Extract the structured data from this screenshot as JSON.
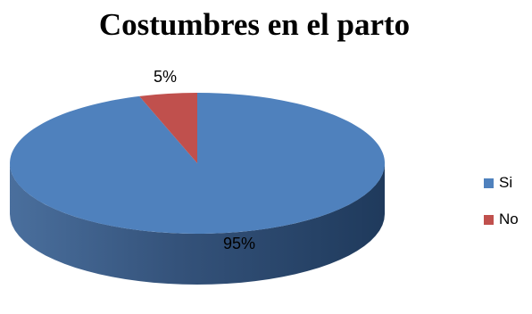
{
  "chart_data": {
    "type": "pie",
    "title": "Costumbres en el parto",
    "categories": [
      "Si",
      "No"
    ],
    "values": [
      95,
      5
    ],
    "data_labels": [
      "95%",
      "5%"
    ],
    "colors": [
      "#4F81BD",
      "#C0504D"
    ],
    "legend_placement": "right",
    "style": "3d"
  }
}
